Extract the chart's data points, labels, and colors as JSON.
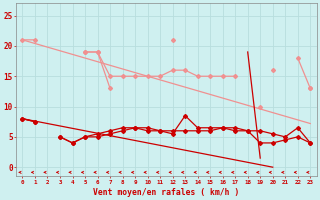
{
  "xlabel": "Vent moyen/en rafales ( km/h )",
  "background_color": "#cff0f0",
  "grid_color": "#aadddd",
  "text_color": "#cc0000",
  "x": [
    0,
    1,
    2,
    3,
    4,
    5,
    6,
    7,
    8,
    9,
    10,
    11,
    12,
    13,
    14,
    15,
    16,
    17,
    18,
    19,
    20,
    21,
    22,
    23
  ],
  "ylim": [
    -1.5,
    27
  ],
  "xlim": [
    -0.5,
    23.5
  ],
  "yticks": [
    0,
    5,
    10,
    15,
    20,
    25
  ],
  "line1_pink": [
    21,
    21,
    null,
    null,
    null,
    19,
    19,
    15,
    15,
    15,
    15,
    15,
    16,
    16,
    15,
    15,
    15,
    15,
    null,
    null,
    16,
    null,
    18,
    13
  ],
  "line2_pink": [
    null,
    null,
    null,
    null,
    null,
    19,
    19,
    13,
    null,
    null,
    null,
    null,
    21,
    null,
    null,
    null,
    null,
    null,
    null,
    10,
    null,
    null,
    null,
    13
  ],
  "line3_pink_diag": [
    21,
    20.4,
    19.8,
    19.2,
    18.6,
    18,
    17.4,
    16.8,
    16.2,
    15.6,
    15,
    14.4,
    13.8,
    13.2,
    12.6,
    12,
    11.4,
    10.8,
    10.2,
    9.6,
    9,
    8.4,
    7.8,
    7.2
  ],
  "line4_red": [
    8,
    7.5,
    null,
    5,
    4,
    5,
    5.5,
    6,
    6.5,
    6.5,
    6.5,
    6,
    5.5,
    8.5,
    6.5,
    6.5,
    6.5,
    6.5,
    6,
    6,
    5.5,
    5,
    6.5,
    4
  ],
  "line5_red": [
    8,
    7.5,
    null,
    5,
    4,
    5,
    5,
    5.5,
    6,
    6.5,
    6,
    6,
    6,
    6,
    6,
    6,
    6.5,
    6,
    6,
    4,
    4,
    4.5,
    5,
    4
  ],
  "line6_red": [
    null,
    null,
    null,
    null,
    null,
    null,
    null,
    null,
    null,
    null,
    null,
    null,
    null,
    null,
    null,
    null,
    null,
    null,
    19,
    1.5,
    null,
    null,
    null,
    null
  ],
  "line6_red_diag": [
    8,
    7.6,
    7.2,
    6.8,
    6.4,
    6,
    5.6,
    5.2,
    4.8,
    4.4,
    4,
    3.6,
    3.2,
    2.8,
    2.4,
    2,
    1.6,
    1.2,
    0.8,
    0.4,
    0,
    null,
    null,
    null
  ],
  "color_light": "#f09090",
  "color_dark": "#cc0000",
  "color_black": "#440000",
  "markersize": 2.0,
  "linewidth": 0.9
}
